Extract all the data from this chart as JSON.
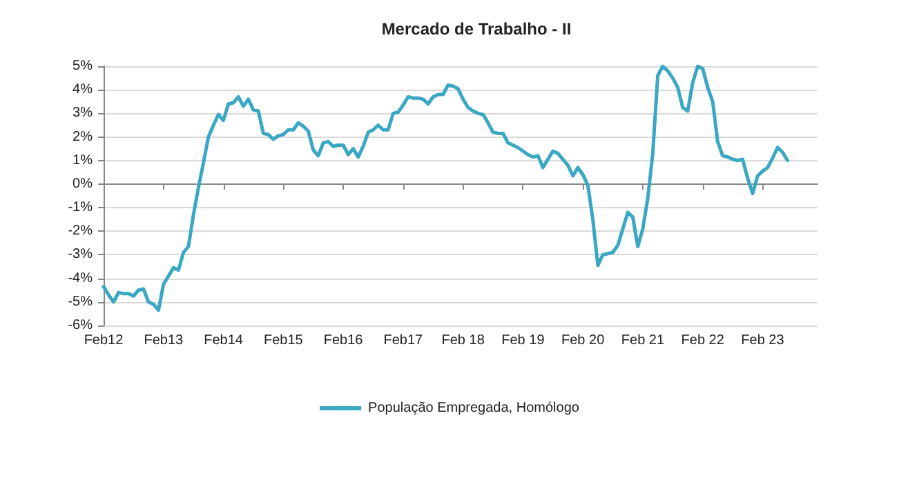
{
  "chart_data": {
    "type": "line",
    "title": "Mercado de Trabalho - II",
    "categories": [
      "Feb12",
      null,
      null,
      null,
      null,
      null,
      null,
      null,
      null,
      null,
      null,
      null,
      "Feb13",
      null,
      null,
      null,
      null,
      null,
      null,
      null,
      null,
      null,
      null,
      null,
      "Feb14",
      null,
      null,
      null,
      null,
      null,
      null,
      null,
      null,
      null,
      null,
      null,
      "Feb15",
      null,
      null,
      null,
      null,
      null,
      null,
      null,
      null,
      null,
      null,
      null,
      "Feb16",
      null,
      null,
      null,
      null,
      null,
      null,
      null,
      null,
      null,
      null,
      null,
      "Feb17",
      null,
      null,
      null,
      null,
      null,
      null,
      null,
      null,
      null,
      null,
      null,
      "Feb 18",
      null,
      null,
      null,
      null,
      null,
      null,
      null,
      null,
      null,
      null,
      null,
      "Feb 19",
      null,
      null,
      null,
      null,
      null,
      null,
      null,
      null,
      null,
      null,
      null,
      "Feb 20",
      null,
      null,
      null,
      null,
      null,
      null,
      null,
      null,
      null,
      null,
      null,
      "Feb 21",
      null,
      null,
      null,
      null,
      null,
      null,
      null,
      null,
      null,
      null,
      null,
      "Feb 22",
      null,
      null,
      null,
      null,
      null,
      null,
      null,
      null,
      null,
      null,
      null,
      "Feb 23",
      null,
      null,
      null,
      null,
      null,
      null,
      null,
      null,
      null,
      null,
      null
    ],
    "series": [
      {
        "name": "População Empregada, Homólogo",
        "color": "#3aa7c4",
        "values": [
          -4.35,
          -4.7,
          -5.0,
          -4.6,
          -4.65,
          -4.65,
          -4.75,
          -4.5,
          -4.45,
          -5.0,
          -5.1,
          -5.35,
          -4.25,
          -3.9,
          -3.55,
          -3.65,
          -2.9,
          -2.65,
          -1.3,
          -0.15,
          0.9,
          2.0,
          2.5,
          2.95,
          2.7,
          3.4,
          3.45,
          3.7,
          3.3,
          3.6,
          3.15,
          3.1,
          2.15,
          2.1,
          1.9,
          2.05,
          2.1,
          2.3,
          2.3,
          2.6,
          2.45,
          2.25,
          1.45,
          1.2,
          1.75,
          1.8,
          1.6,
          1.65,
          1.65,
          1.25,
          1.5,
          1.15,
          1.6,
          2.2,
          2.3,
          2.5,
          2.3,
          2.3,
          3.0,
          3.05,
          3.35,
          3.7,
          3.65,
          3.65,
          3.6,
          3.4,
          3.7,
          3.8,
          3.8,
          4.2,
          4.15,
          4.05,
          3.6,
          3.25,
          3.1,
          3.0,
          2.95,
          2.6,
          2.2,
          2.15,
          2.15,
          1.75,
          1.65,
          1.55,
          1.4,
          1.25,
          1.15,
          1.2,
          0.7,
          1.05,
          1.4,
          1.3,
          1.05,
          0.8,
          0.35,
          0.7,
          0.4,
          -0.05,
          -1.5,
          -3.45,
          -3.0,
          -2.95,
          -2.9,
          -2.6,
          -1.9,
          -1.2,
          -1.4,
          -2.65,
          -1.9,
          -0.6,
          1.3,
          4.6,
          5.0,
          4.8,
          4.5,
          4.1,
          3.25,
          3.1,
          4.3,
          5.0,
          4.9,
          4.1,
          3.5,
          1.8,
          1.2,
          1.15,
          1.05,
          1.0,
          1.05,
          0.25,
          -0.4,
          0.35,
          0.55,
          0.7,
          1.1,
          1.55,
          1.35,
          1.0,
          null,
          null,
          null,
          null,
          null,
          null
        ]
      }
    ],
    "ylim": [
      -6,
      5
    ],
    "yticks": [
      {
        "value": -6,
        "label": "-6%"
      },
      {
        "value": -5,
        "label": "-5%"
      },
      {
        "value": -4,
        "label": "-4%"
      },
      {
        "value": -3,
        "label": "-3%"
      },
      {
        "value": -2,
        "label": "-2%"
      },
      {
        "value": -1,
        "label": "-1%"
      },
      {
        "value": 0,
        "label": "0%"
      },
      {
        "value": 1,
        "label": "1%"
      },
      {
        "value": 2,
        "label": "2%"
      },
      {
        "value": 3,
        "label": "3%"
      },
      {
        "value": 4,
        "label": "4%"
      },
      {
        "value": 5,
        "label": "5%"
      }
    ],
    "grid": "y",
    "legend": "bottom",
    "marker": "none",
    "line_style": "solid"
  }
}
